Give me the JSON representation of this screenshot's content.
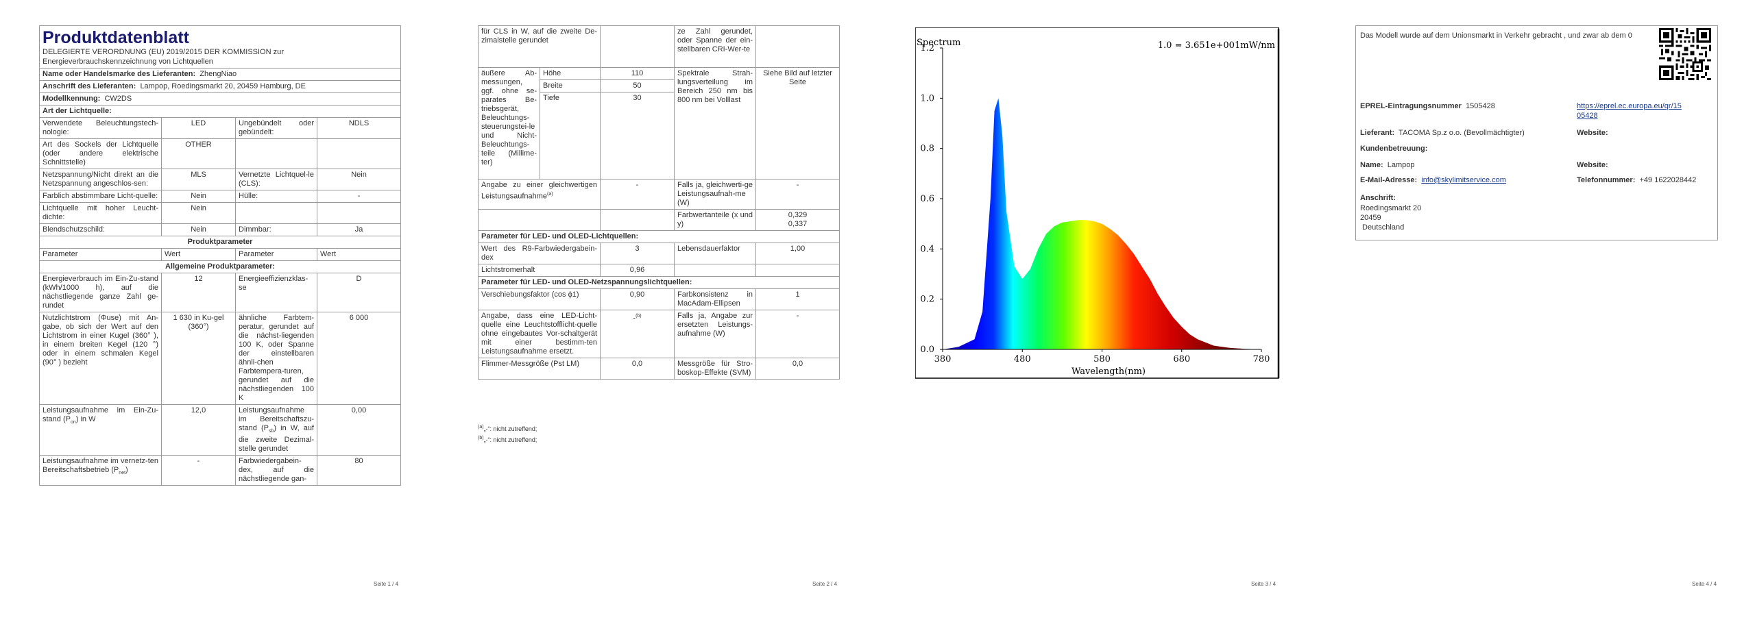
{
  "page1": {
    "title": "Produktdatenblatt",
    "subtitle": "DELEGIERTE VERORDNUNG (EU) 2019/2015 DER KOMMISSION zur Energieverbrauchskennzeichnung von Lichtquellen",
    "supplier_label": "Name oder Handelsmarke des Lieferanten:",
    "supplier": "ZhengNiao",
    "address_label": "Anschrift des Lieferanten:",
    "address": "Lampop, Roedingsmarkt 20, 20459 Hamburg, DE",
    "model_label": "Modellkennung:",
    "model": "CW2DS",
    "type_label": "Art der Lichtquelle:",
    "r1a": "Verwendete Beleuchtungstech-nologie:",
    "r1b": "LED",
    "r1c": "Ungebündelt oder gebündelt:",
    "r1d": "NDLS",
    "r2a": "Art des Sockels der Lichtquelle (oder andere elektrische Schnittstelle)",
    "r2b": "OTHER",
    "r3a": "Netzspannung/Nicht direkt an die Netzspannung angeschlos-sen:",
    "r3b": "MLS",
    "r3c": "Vernetzte Lichtquel-le (CLS):",
    "r3d": "Nein",
    "r4a": "Farblich abstimmbare Licht-quelle:",
    "r4b": "Nein",
    "r4c": "Hülle:",
    "r4d": "-",
    "r5a": "Lichtquelle mit hoher Leucht-dichte:",
    "r5b": "Nein",
    "r6a": "Blendschutzschild:",
    "r6b": "Nein",
    "r6c": "Dimmbar:",
    "r6d": "Ja",
    "prod_params": "Produktparameter",
    "h_param": "Parameter",
    "h_value": "Wert",
    "general": "Allgemeine Produktparameter:",
    "g1a": "Energieverbrauch im Ein-Zu-stand (kWh/1000 h), auf die nächstliegende ganze Zahl ge-rundet",
    "g1b": "12",
    "g1c": "Energieeffizienzklas-se",
    "g1d": "D",
    "g2a": "Nutzlichtstrom (Φuse) mit An-gabe, ob sich der Wert auf den Lichtstrom in einer Kugel (360° ), in einem breiten Kegel (120 °) oder in einem schmalen Kegel (90° ) bezieht",
    "g2b": "1 630 in Ku-gel (360°)",
    "g2c": "ähnliche Farbtem-peratur, gerundet auf die nächst-liegenden 100 K, oder Spanne der einstellbaren ähnli-chen Farbtempera-turen, gerundet auf die nächstliegenden 100 K",
    "g2d": "6 000",
    "g3a": "Leistungsaufnahme im Ein-Zu-stand (P",
    "g3a_sub": "on",
    "g3a_end": ") in W",
    "g3b": "12,0",
    "g3c": "Leistungsaufnahme im Bereitschaftszu-stand (P",
    "g3c_sub": "sb",
    "g3c_end": ") in W, auf die zweite Dezimal-stelle gerundet",
    "g3d": "0,00",
    "g4a": "Leistungsaufnahme im vernetz-ten Bereitschaftsbetrieb (P",
    "g4a_sub": "net",
    "g4a_end": ")",
    "g4b": "-",
    "g4c": "Farbwiedergabein-dex, auf die nächstliegende gan-",
    "g4d": "80",
    "page_num": "Seite 1 / 4"
  },
  "page2": {
    "t1a": "für CLS in W, auf die zweite De-zimalstelle gerundet",
    "t1c": "ze Zahl gerundet, oder Spanne der ein-stellbaren CRI-Wer-te",
    "d_label": "äußere Ab-messungen, ggf. ohne se-parates Be-triebsgerät, Beleuchtungs-steuerungstei-le und Nicht-Beleuchtungs-teile (Millime-ter)",
    "h_label": "Höhe",
    "h_val": "110",
    "w_label": "Breite",
    "w_val": "50",
    "d2_label": "Tiefe",
    "d2_val": "30",
    "spec_label": "Spektrale Strah-lungsverteilung im Bereich 250 nm bis 800 nm bei Volllast",
    "spec_val": "Siehe Bild auf letzter Seite",
    "eq_label": "Angabe zu einer gleichwertigen Leistungsaufnahme",
    "eq_sup": "(a)",
    "eq_val": "-",
    "eq2_label": "Falls ja, gleichwerti-ge Leistungsaufnah-me (W)",
    "eq2_val": "-",
    "chrom_label": "Farbwertanteile (x und y)",
    "chrom_val1": "0,329",
    "chrom_val2": "0,337",
    "led_head": "Parameter für LED- und OLED-Lichtquellen:",
    "r9_label": "Wert des R9-Farbwiedergabein-dex",
    "r9_val": "3",
    "life_label": "Lebensdauerfaktor",
    "life_val": "1,00",
    "lum_label": "Lichtstromerhalt",
    "lum_val": "0,96",
    "mains_head": "Parameter für LED- und OLED-Netzspannungslichtquellen:",
    "cos_label": "Verschiebungsfaktor (cos ϕ1)",
    "cos_val": "0,90",
    "mac_label": "Farbkonsistenz in MacAdam-Ellipsen",
    "mac_val": "1",
    "repl_label": "Angabe, dass eine LED-Licht-quelle eine Leuchtstofflicht-quelle ohne eingebautes Vor-schaltgerät mit einer bestimm-ten Leistungsaufnahme ersetzt.",
    "repl_val": "-",
    "repl_sup": "(b)",
    "repl2_label": "Falls ja, Angabe zur ersetzten Leistungs-aufnahme (W)",
    "repl2_val": "-",
    "flick_label": "Flimmer-Messgröße (Pst LM)",
    "flick_val": "0,0",
    "strobo_label": "Messgröße für Stro-boskop-Effekte (SVM)",
    "strobo_val": "0,0",
    "fn_a": "(a)",
    "fn_a_text": "„-“: nicht zutreffend;",
    "fn_b": "(b)",
    "fn_b_text": "„-“: nicht zutreffend;",
    "page_num": "Seite 2 / 4"
  },
  "page3": {
    "page_num": "Seite 3 / 4",
    "chart_data": {
      "type": "area",
      "title": "Spectrum",
      "annotation": "1.0 = 3.651e+001mW/nm",
      "xlabel": "Wavelength(nm)",
      "ylabel": "",
      "xlim": [
        380,
        780
      ],
      "ylim": [
        0,
        1.2
      ],
      "x_ticks": [
        "380",
        "480",
        "580",
        "680",
        "780"
      ],
      "y_ticks": [
        "0.0",
        "0.2",
        "0.4",
        "0.6",
        "0.8",
        "1.0",
        "1.2"
      ],
      "x": [
        380,
        400,
        420,
        430,
        440,
        445,
        450,
        455,
        460,
        470,
        480,
        490,
        500,
        510,
        520,
        530,
        540,
        550,
        560,
        570,
        580,
        590,
        600,
        610,
        620,
        630,
        640,
        650,
        660,
        670,
        680,
        690,
        700,
        720,
        740,
        760,
        780
      ],
      "y": [
        0.0,
        0.01,
        0.04,
        0.15,
        0.6,
        0.95,
        1.0,
        0.85,
        0.55,
        0.33,
        0.28,
        0.32,
        0.4,
        0.46,
        0.49,
        0.505,
        0.51,
        0.515,
        0.515,
        0.51,
        0.5,
        0.48,
        0.455,
        0.42,
        0.38,
        0.33,
        0.28,
        0.22,
        0.17,
        0.125,
        0.09,
        0.06,
        0.04,
        0.015,
        0.006,
        0.002,
        0.0
      ]
    }
  },
  "page4": {
    "market_text": "Das Modell wurde auf dem Unionsmarkt in Verkehr gebracht , und zwar ab dem 0",
    "eprel_label": "EPREL-Eintragungsnummer",
    "eprel": "1505428",
    "eprel_link_1": "https://eprel.ec.europa.eu/qr/15",
    "eprel_link_2": "05428",
    "supplier_label": "Lieferant:",
    "supplier": "TACOMA Sp.z o.o. (Bevollmächtigter)",
    "website_label": "Website:",
    "care_label": "Kundenbetreuung:",
    "name_label": "Name:",
    "name": "Lampop",
    "website2_label": "Website:",
    "email_label": "E-Mail-Adresse:",
    "email": "info@skylimitservice.com",
    "phone_label": "Telefonnummer:",
    "phone": "+49 1622028442",
    "addr_label": "Anschrift:",
    "addr1": "Roedingsmarkt 20",
    "addr2": "20459",
    "addr3": " Deutschland",
    "page_num": "Seite 4 / 4"
  }
}
